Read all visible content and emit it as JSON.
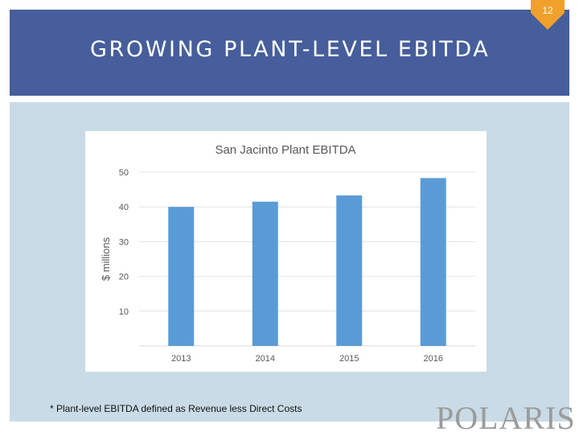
{
  "slide": {
    "title": "GROWING PLANT-LEVEL EBITDA",
    "page_number": "12",
    "footnote": "* Plant-level EBITDA defined as Revenue less Direct Costs",
    "logo_text": "POLARIS",
    "colors": {
      "header": "#465e9c",
      "badge": "#f0a12b",
      "panel": "#c9dbe6",
      "bar": "#5b9bd5",
      "logo": "#9b9b9b"
    }
  },
  "chart_data": {
    "type": "bar",
    "title": "San Jacinto Plant EBITDA",
    "xlabel": "",
    "ylabel": "$ millions",
    "categories": [
      "2013",
      "2014",
      "2015",
      "2016"
    ],
    "values": [
      40,
      41.5,
      43.3,
      48.3
    ],
    "ylim": [
      0,
      50
    ],
    "yticks": [
      10,
      20,
      30,
      40,
      50
    ],
    "grid": true,
    "legend": "none"
  }
}
